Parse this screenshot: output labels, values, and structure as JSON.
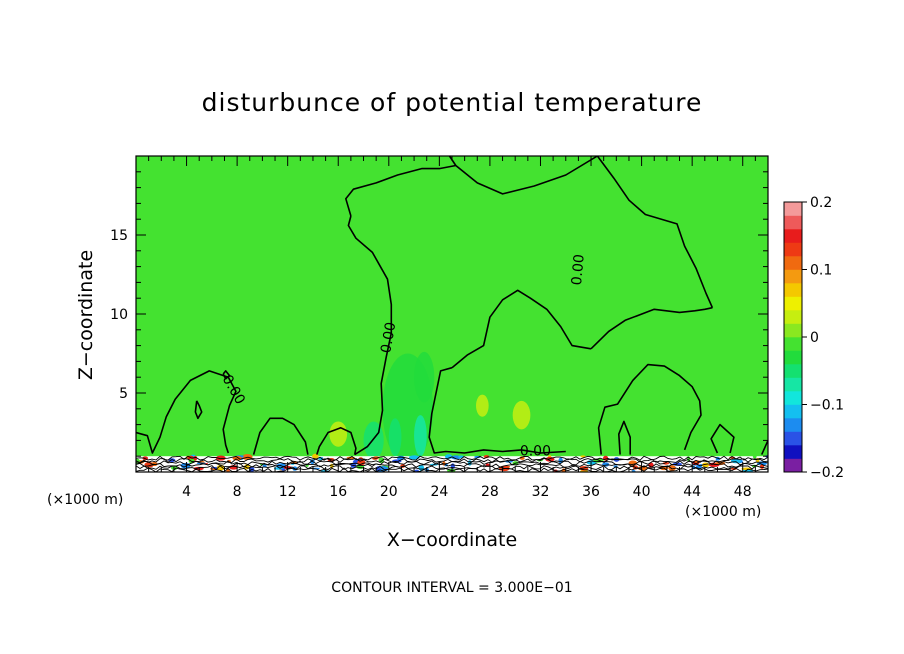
{
  "chart_data": {
    "type": "heatmap",
    "title": "disturbunce of potential temperature",
    "xlabel": "X−coordinate",
    "ylabel": "Z−coordinate",
    "x_unit_left": "(×1000 m)",
    "x_unit_right": "(×1000 m)",
    "xlim": [
      0,
      50
    ],
    "ylim": [
      0,
      20
    ],
    "xticks": [
      4,
      8,
      12,
      16,
      20,
      24,
      28,
      32,
      36,
      40,
      44,
      48
    ],
    "xtick_labels": [
      "4",
      "8",
      "12",
      "16",
      "20",
      "24",
      "28",
      "32",
      "36",
      "40",
      "44",
      "48"
    ],
    "yticks": [
      5,
      10,
      15
    ],
    "ytick_labels": [
      "5",
      "10",
      "15"
    ],
    "footer": "CONTOUR INTERVAL = 3.000E−01",
    "contour_labels": [
      {
        "text": "0.00",
        "x": 20.0,
        "z": 8.5,
        "angle": -80
      },
      {
        "text": "0.00",
        "x": 35.0,
        "z": 12.8,
        "angle": -85
      },
      {
        "text": "0.00",
        "x": 7.7,
        "z": 5.2,
        "angle": 60
      },
      {
        "text": "0.00",
        "x": 31.6,
        "z": 1.3,
        "angle": 0
      }
    ],
    "colorbar": {
      "min": -0.2,
      "max": 0.2,
      "tick_values": [
        0.2,
        0.1,
        0,
        -0.1,
        -0.2
      ],
      "tick_labels": [
        "0.2",
        "0.1",
        "0",
        "−0.1",
        "−0.2"
      ],
      "colors": [
        "#7a1fa2",
        "#1010c0",
        "#2a52e6",
        "#1c8cf0",
        "#14bff0",
        "#12e6dc",
        "#16e6a4",
        "#14e070",
        "#22dc3c",
        "#44e230",
        "#8ae820",
        "#c6ee10",
        "#eef000",
        "#f4c800",
        "#f49a10",
        "#f06a10",
        "#ee3a14",
        "#e81c1c",
        "#ee5a5a",
        "#f49a9a"
      ]
    },
    "background_value": 0.0,
    "background_color": "#44e230",
    "zero_contours": [
      {
        "points": [
          [
            36.5,
            20
          ],
          [
            34,
            18.8
          ],
          [
            31.5,
            18.1
          ],
          [
            29,
            17.6
          ],
          [
            27,
            18.3
          ],
          [
            25.3,
            19.4
          ],
          [
            24.8,
            20
          ]
        ]
      },
      {
        "points": [
          [
            17,
            16.2
          ],
          [
            16.6,
            17.3
          ],
          [
            17.2,
            17.9
          ],
          [
            19,
            18.3
          ],
          [
            20.7,
            18.8
          ],
          [
            22.6,
            19.2
          ],
          [
            24,
            19.2
          ],
          [
            25.3,
            19.4
          ]
        ]
      },
      {
        "points": [
          [
            17,
            16.2
          ],
          [
            16.8,
            15.6
          ],
          [
            17.4,
            14.8
          ],
          [
            18.7,
            13.9
          ],
          [
            19.9,
            12.2
          ],
          [
            20.2,
            10.6
          ],
          [
            20.2,
            8.8
          ],
          [
            19.8,
            7.3
          ],
          [
            19.4,
            5.6
          ],
          [
            19.5,
            3.9
          ],
          [
            19.2,
            2.5
          ],
          [
            18.3,
            1.6
          ],
          [
            17.3,
            1.1
          ]
        ]
      },
      {
        "points": [
          [
            36.5,
            20
          ],
          [
            37.8,
            18.6
          ],
          [
            39,
            17.2
          ],
          [
            40.3,
            16.3
          ],
          [
            42.8,
            15.7
          ],
          [
            43.4,
            14.3
          ],
          [
            44.3,
            12.9
          ],
          [
            45.1,
            11.3
          ],
          [
            45.6,
            10.4
          ]
        ]
      },
      {
        "points": [
          [
            45.6,
            10.4
          ],
          [
            45,
            10.3
          ],
          [
            44.2,
            10.2
          ],
          [
            43,
            10.1
          ],
          [
            41,
            10.3
          ],
          [
            38.7,
            9.6
          ],
          [
            37.4,
            8.9
          ],
          [
            36,
            7.8
          ]
        ]
      },
      {
        "points": [
          [
            36,
            7.8
          ],
          [
            34.5,
            8.0
          ],
          [
            33.6,
            9.2
          ],
          [
            32.5,
            10.3
          ],
          [
            31.2,
            11.0
          ],
          [
            30.2,
            11.5
          ],
          [
            29.0,
            10.9
          ],
          [
            28.0,
            9.8
          ],
          [
            27.5,
            8.0
          ],
          [
            26.2,
            7.4
          ],
          [
            25.0,
            6.6
          ]
        ]
      },
      {
        "points": [
          [
            25.0,
            6.6
          ],
          [
            24.1,
            6.4
          ],
          [
            23.4,
            3.7
          ],
          [
            23.2,
            2.2
          ],
          [
            23.6,
            1.2
          ],
          [
            24.5,
            1.3
          ],
          [
            26,
            1.2
          ],
          [
            27.5,
            1.4
          ],
          [
            29,
            1.3
          ],
          [
            30.5,
            1.4
          ],
          [
            32,
            1.2
          ],
          [
            34,
            1.3
          ]
        ]
      },
      {
        "points": [
          [
            0,
            2.5
          ],
          [
            0.9,
            2.3
          ],
          [
            1.3,
            1.2
          ],
          [
            1.9,
            2.2
          ],
          [
            2.4,
            3.5
          ],
          [
            3.1,
            4.6
          ],
          [
            4.3,
            5.8
          ],
          [
            5.8,
            6.4
          ],
          [
            7.3,
            6.0
          ],
          [
            7.9,
            5.1
          ],
          [
            7.4,
            4.2
          ],
          [
            6.9,
            2.7
          ],
          [
            7.1,
            1.7
          ],
          [
            7.3,
            1.2
          ]
        ]
      },
      {
        "points": [
          [
            9.3,
            1.1
          ],
          [
            9.8,
            2.5
          ],
          [
            10.6,
            3.4
          ],
          [
            11.6,
            3.4
          ],
          [
            12.5,
            3.0
          ],
          [
            13.4,
            1.9
          ],
          [
            13.6,
            1.1
          ]
        ]
      },
      {
        "points": [
          [
            14.3,
            1.1
          ],
          [
            14.5,
            1.6
          ],
          [
            15.2,
            2.5
          ],
          [
            16.2,
            2.8
          ],
          [
            17.0,
            2.5
          ],
          [
            17.4,
            1.5
          ],
          [
            17.3,
            1.1
          ]
        ]
      },
      {
        "points": [
          [
            36.8,
            1.1
          ],
          [
            36.6,
            2.8
          ],
          [
            37.1,
            4.1
          ],
          [
            38.1,
            4.3
          ],
          [
            39.3,
            5.8
          ],
          [
            40.5,
            6.8
          ],
          [
            41.8,
            6.7
          ],
          [
            43.0,
            6.1
          ],
          [
            44.0,
            5.4
          ],
          [
            44.6,
            4.5
          ],
          [
            44.7,
            3.6
          ],
          [
            43.9,
            2.5
          ],
          [
            43.4,
            1.4
          ]
        ]
      },
      {
        "points": [
          [
            38.3,
            1.1
          ],
          [
            38.2,
            2.4
          ],
          [
            38.6,
            3.2
          ],
          [
            39.1,
            2.2
          ],
          [
            39.1,
            1.1
          ]
        ]
      },
      {
        "points": [
          [
            46.0,
            1.2
          ],
          [
            45.5,
            2.1
          ],
          [
            46.2,
            3.0
          ],
          [
            47.3,
            2.2
          ],
          [
            47.0,
            1.2
          ]
        ]
      },
      {
        "points": [
          [
            49.5,
            1.1
          ],
          [
            50,
            2.0
          ]
        ]
      },
      {
        "points": [
          [
            4.8,
            4.5
          ],
          [
            5.0,
            4.2
          ],
          [
            5.2,
            3.8
          ],
          [
            4.9,
            3.4
          ],
          [
            4.7,
            3.8
          ],
          [
            4.8,
            4.5
          ]
        ]
      },
      {
        "points": [
          [
            6.9,
            6.2
          ],
          [
            7.1,
            5.9
          ],
          [
            7.4,
            6.1
          ],
          [
            7.1,
            6.4
          ],
          [
            6.9,
            6.2
          ]
        ]
      }
    ],
    "anomalies": [
      {
        "x": 21.5,
        "z": 4.0,
        "rx": 2.0,
        "rz": 3.5,
        "value": -0.03
      },
      {
        "x": 22.8,
        "z": 6.0,
        "rx": 0.8,
        "rz": 1.6,
        "value": -0.035
      },
      {
        "x": 18.8,
        "z": 2.0,
        "rx": 0.8,
        "rz": 1.2,
        "value": -0.055
      },
      {
        "x": 20.5,
        "z": 2.2,
        "rx": 0.5,
        "rz": 1.2,
        "value": -0.05
      },
      {
        "x": 22.5,
        "z": 2.3,
        "rx": 0.5,
        "rz": 1.3,
        "value": -0.07
      },
      {
        "x": 25.8,
        "z": 5.5,
        "rx": 0.6,
        "rz": 1.0,
        "value": -0.01
      },
      {
        "x": 30.5,
        "z": 3.6,
        "rx": 0.7,
        "rz": 0.9,
        "value": 0.035
      },
      {
        "x": 27.4,
        "z": 4.2,
        "rx": 0.5,
        "rz": 0.7,
        "value": 0.03
      },
      {
        "x": 16.0,
        "z": 2.4,
        "rx": 0.7,
        "rz": 0.8,
        "value": 0.03
      }
    ],
    "surface_layer": {
      "z_top": 1.0
    }
  }
}
